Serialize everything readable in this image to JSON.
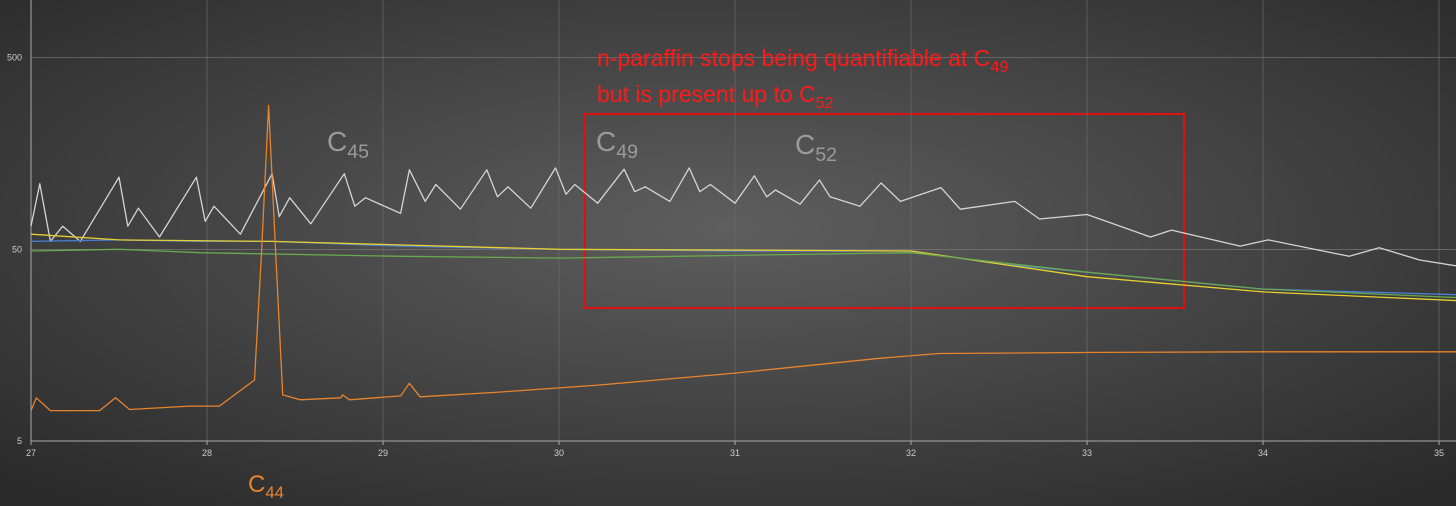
{
  "chart_data": {
    "type": "line",
    "xlim": [
      27,
      35.1
    ],
    "ylim": [
      5,
      1000
    ],
    "log_y": true,
    "grid": true,
    "xticks": [
      27,
      28,
      29,
      30,
      31,
      32,
      33,
      34,
      35
    ],
    "yticks": [
      5,
      50,
      500
    ],
    "series": [
      {
        "color": "#d4d4d4",
        "x": [
          27.0,
          27.05,
          27.11,
          27.18,
          27.28,
          27.5,
          27.55,
          27.61,
          27.73,
          27.94,
          27.99,
          28.04,
          28.19,
          28.37,
          28.41,
          28.47,
          28.59,
          28.78,
          28.84,
          28.9,
          29.1,
          29.15,
          29.24,
          29.3,
          29.44,
          29.59,
          29.65,
          29.71,
          29.84,
          29.98,
          30.04,
          30.09,
          30.22,
          30.37,
          30.43,
          30.49,
          30.63,
          30.74,
          30.8,
          30.86,
          31.0,
          31.11,
          31.18,
          31.23,
          31.37,
          31.48,
          31.54,
          31.71,
          31.83,
          31.94,
          32.17,
          32.28,
          32.59,
          32.73,
          33.0,
          33.36,
          33.48,
          33.87,
          34.03,
          34.49,
          34.66,
          34.89,
          35.1
        ],
        "values": [
          66,
          110,
          55,
          66,
          55,
          119,
          66,
          82,
          58,
          119,
          70,
          84,
          60,
          124,
          74,
          93,
          68,
          124,
          84,
          93,
          77,
          130,
          89,
          109,
          81,
          130,
          94,
          106,
          82,
          133,
          97,
          109,
          87,
          131,
          100,
          106,
          89,
          133,
          100,
          109,
          87,
          121,
          94,
          102,
          86,
          115,
          94,
          84,
          111,
          89,
          105,
          81,
          89,
          72,
          76,
          58,
          63,
          52,
          56,
          46,
          51,
          44,
          41
        ]
      },
      {
        "color": "#4a7fd6",
        "x": [
          27,
          27.5,
          27.96,
          28.37,
          29.1,
          30,
          31,
          32,
          32.5,
          33,
          34,
          35.1
        ],
        "values": [
          55,
          56,
          55,
          55,
          52,
          50,
          49,
          49,
          42,
          38,
          31,
          29
        ]
      },
      {
        "color": "#e8d030",
        "x": [
          27,
          27.5,
          28.37,
          30,
          32,
          33,
          34,
          35.1
        ],
        "values": [
          60,
          56,
          55,
          50,
          49,
          36,
          30,
          27
        ]
      },
      {
        "color": "#6aa84f",
        "x": [
          27,
          27.5,
          27.96,
          29.1,
          30,
          32,
          33,
          34,
          35.1
        ],
        "values": [
          49,
          50,
          48,
          46,
          45,
          48,
          38,
          31,
          28
        ]
      },
      {
        "color": "#e8842c",
        "x": [
          27.0,
          27.03,
          27.11,
          27.39,
          27.48,
          27.56,
          27.9,
          28.07,
          28.27,
          28.31,
          28.35,
          28.39,
          28.43,
          28.53,
          28.76,
          28.77,
          28.81,
          29.1,
          29.15,
          29.21,
          29.66,
          30.23,
          31.0,
          31.82,
          32.16,
          33.07,
          33.98,
          35.1
        ],
        "values": [
          7.2,
          8.4,
          7.2,
          7.2,
          8.4,
          7.3,
          7.6,
          7.6,
          10.4,
          49,
          282,
          49,
          8.7,
          8.2,
          8.4,
          8.7,
          8.2,
          8.6,
          10.0,
          8.5,
          9.0,
          9.8,
          11.3,
          13.5,
          14.3,
          14.5,
          14.6,
          14.6
        ]
      }
    ],
    "annotations": [
      {
        "text": "C",
        "sub": "44",
        "color": "#e8842c"
      },
      {
        "text": "C",
        "sub": "45",
        "color": "#9a9a9a"
      },
      {
        "text": "C",
        "sub": "49",
        "color": "#9a9a9a"
      },
      {
        "text": "C",
        "sub": "52",
        "color": "#9a9a9a"
      },
      {
        "text": "n-paraffin stops being quantifiable at C",
        "sub": "49",
        "color": "#ff1a1a"
      },
      {
        "text": "but is present up to C",
        "sub": "52",
        "color": "#ff1a1a"
      }
    ]
  }
}
